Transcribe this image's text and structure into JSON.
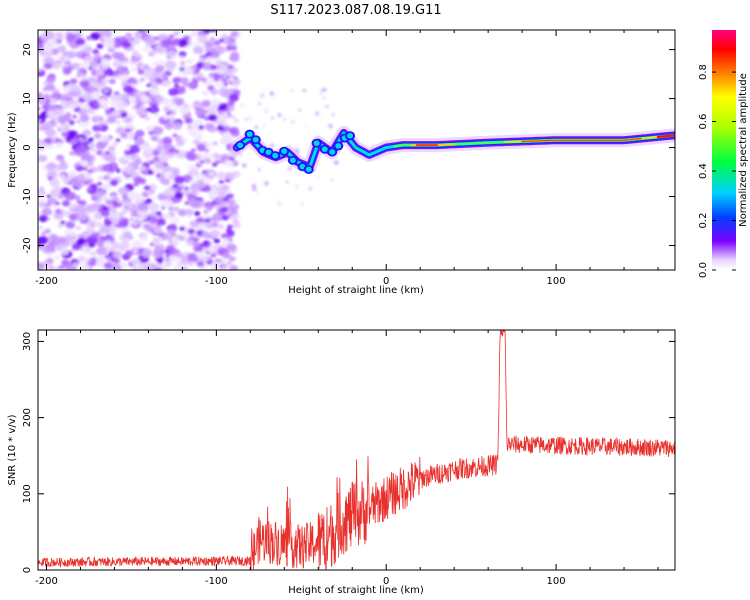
{
  "chart_data": [
    {
      "type": "heatmap",
      "title": "S117.2023.087.08.19.G11",
      "xlabel": "Height of straight line (km)",
      "ylabel": "Frequency (Hz)",
      "xlim": [
        -205,
        170
      ],
      "ylim": [
        -25,
        24
      ],
      "x_ticks": [
        -200,
        -100,
        0,
        100
      ],
      "y_ticks": [
        -20,
        -10,
        0,
        10,
        20
      ],
      "noise_x_range": [
        -205,
        -88
      ],
      "signal_track": [
        {
          "x": -88,
          "y": 0
        },
        {
          "x": -80,
          "y": 2
        },
        {
          "x": -72,
          "y": -1
        },
        {
          "x": -65,
          "y": -2
        },
        {
          "x": -58,
          "y": -1
        },
        {
          "x": -52,
          "y": -3
        },
        {
          "x": -45,
          "y": -4
        },
        {
          "x": -40,
          "y": 1
        },
        {
          "x": -32,
          "y": -1
        },
        {
          "x": -25,
          "y": 3
        },
        {
          "x": -18,
          "y": 0
        },
        {
          "x": -10,
          "y": -1.5
        },
        {
          "x": 0,
          "y": 0
        },
        {
          "x": 10,
          "y": 0.5
        },
        {
          "x": 30,
          "y": 0.5
        },
        {
          "x": 60,
          "y": 1
        },
        {
          "x": 100,
          "y": 1.5
        },
        {
          "x": 140,
          "y": 1.5
        },
        {
          "x": 170,
          "y": 2.5
        }
      ],
      "colorbar": {
        "label": "Normalized spectral amplitude",
        "ticks": [
          "0.0",
          "0.2",
          "0.4",
          "0.6",
          "0.8"
        ],
        "tick_values": [
          0.0,
          0.2,
          0.4,
          0.6,
          0.8
        ],
        "range": [
          0,
          0.97
        ]
      }
    },
    {
      "type": "line",
      "title": "",
      "xlabel": "Height of straight line (km)",
      "ylabel": "SNR (10 * v/v)",
      "xlim": [
        -205,
        170
      ],
      "ylim": [
        0,
        315
      ],
      "x_ticks": [
        -200,
        -100,
        0,
        100
      ],
      "y_ticks": [
        0,
        100,
        200,
        300
      ],
      "line_color": "#e8302c",
      "series": [
        {
          "name": "SNR",
          "anchors": [
            {
              "x": -205,
              "snr": 10
            },
            {
              "x": -80,
              "snr": 12
            },
            {
              "x": -75,
              "snr": 40
            },
            {
              "x": -50,
              "snr": 30
            },
            {
              "x": -35,
              "snr": 40
            },
            {
              "x": -25,
              "snr": 65
            },
            {
              "x": -10,
              "snr": 80
            },
            {
              "x": 0,
              "snr": 95
            },
            {
              "x": 20,
              "snr": 120
            },
            {
              "x": 40,
              "snr": 132
            },
            {
              "x": 65,
              "snr": 138
            },
            {
              "x": 66,
              "snr": 165
            },
            {
              "x": 67,
              "snr": 310
            },
            {
              "x": 70,
              "snr": 312
            },
            {
              "x": 71,
              "snr": 165
            },
            {
              "x": 170,
              "snr": 160
            }
          ]
        }
      ]
    }
  ]
}
